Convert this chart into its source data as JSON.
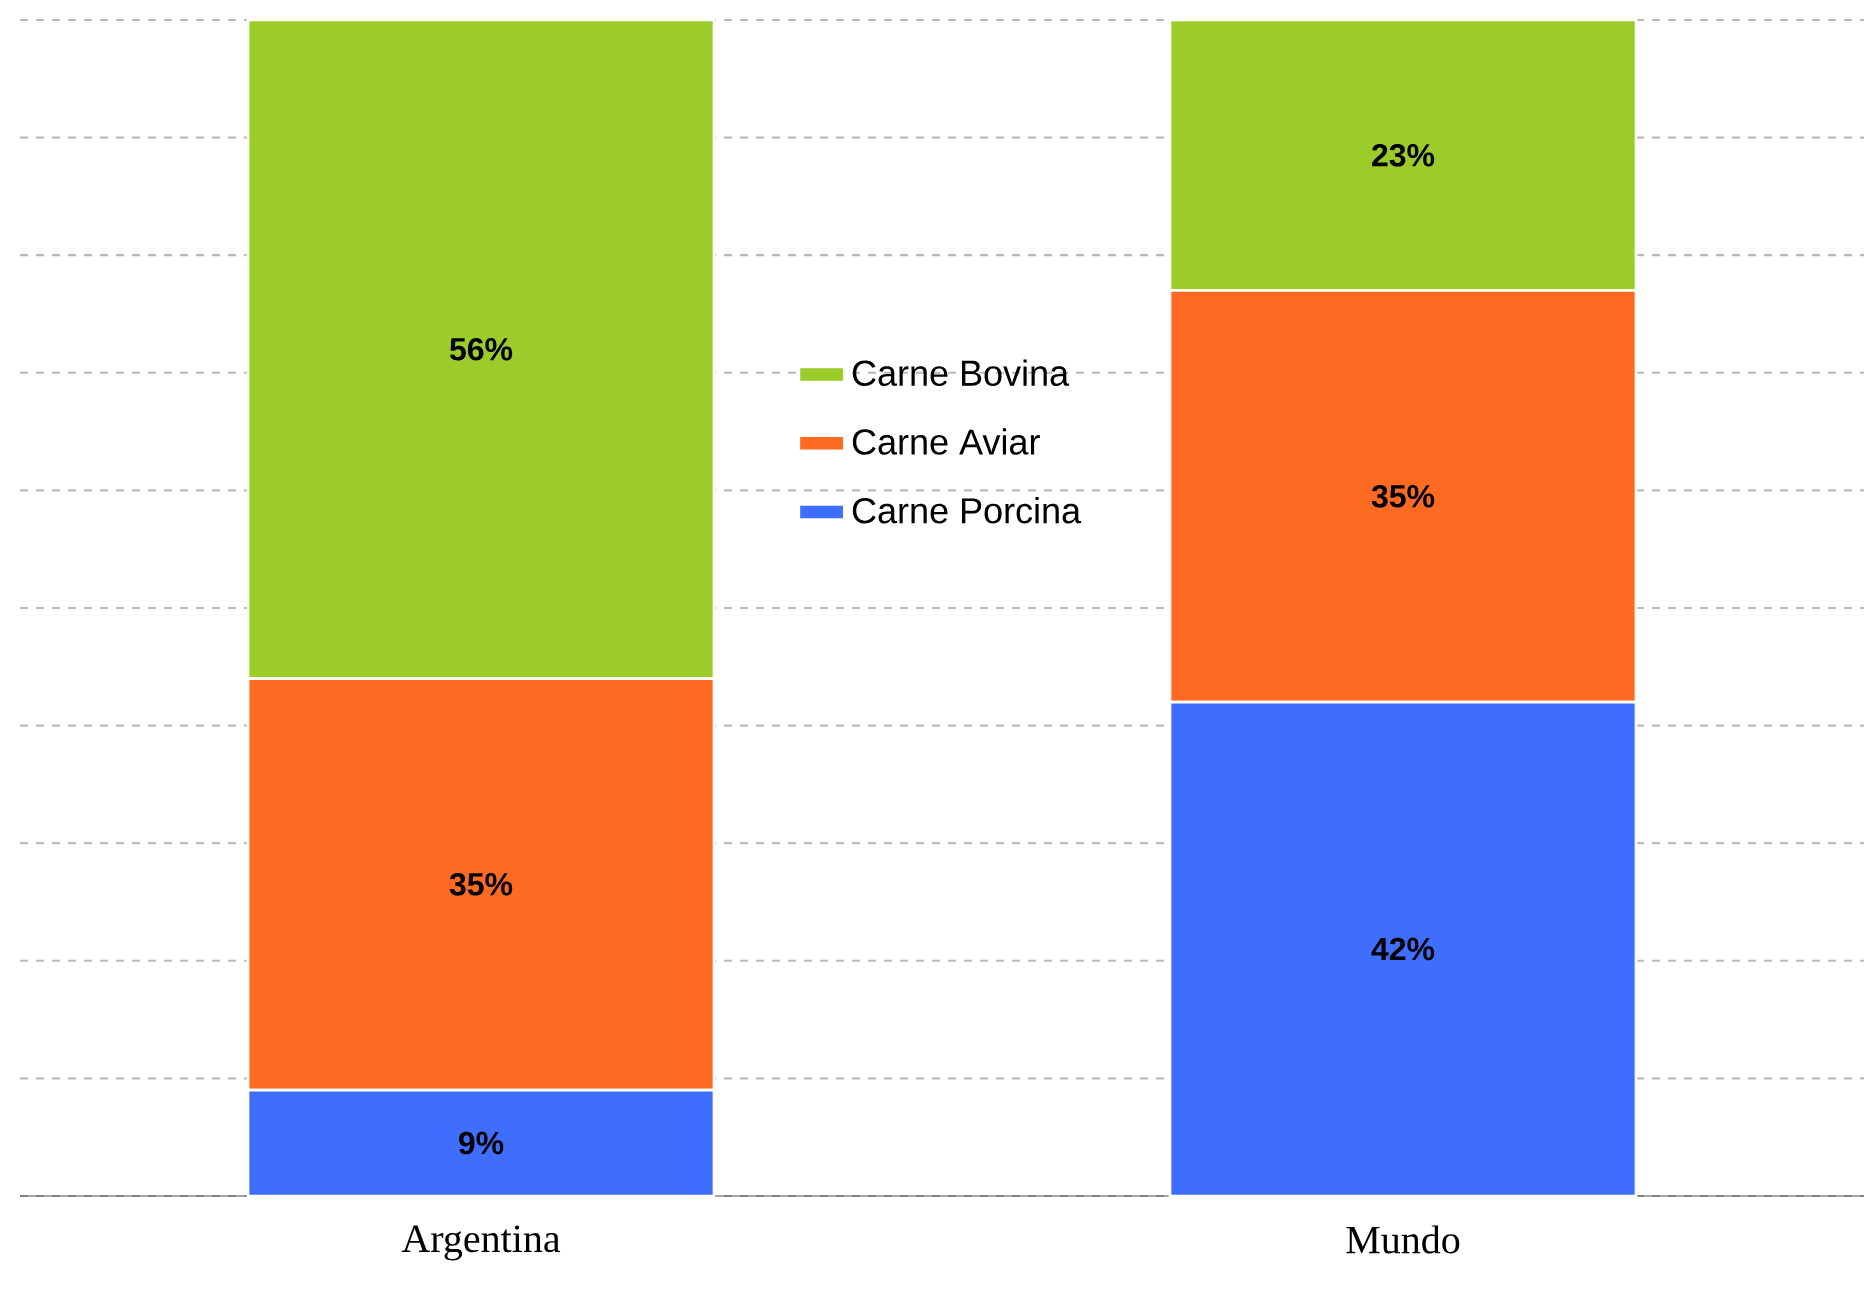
{
  "chart_data": {
    "type": "bar",
    "stacked": true,
    "categories": [
      "Argentina",
      "Mundo"
    ],
    "series": [
      {
        "name": "Carne Porcina",
        "color": "#3f6eff",
        "values": [
          9,
          42
        ],
        "value_labels": [
          "9%",
          "42%"
        ]
      },
      {
        "name": "Carne Aviar",
        "color": "#ff6a22",
        "values": [
          35,
          35
        ],
        "value_labels": [
          "35%",
          "35%"
        ]
      },
      {
        "name": "Carne Bovina",
        "color": "#9ccc2a",
        "values": [
          56,
          23
        ],
        "value_labels": [
          "56%",
          "23%"
        ]
      }
    ],
    "grid": "y",
    "legend": "center",
    "tick_labels": "x"
  }
}
